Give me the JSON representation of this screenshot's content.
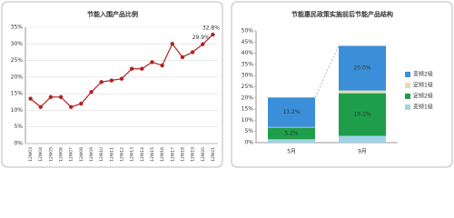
{
  "chart_data": [
    {
      "type": "line",
      "title": "节能入围产品比例",
      "categories": [
        "12W03",
        "12W04",
        "12W05",
        "12W06",
        "12W07",
        "12W08",
        "12W09",
        "12W10",
        "12W11",
        "12W12",
        "12W13",
        "12W14",
        "12W15",
        "12W16",
        "12W17",
        "12W18",
        "12W19",
        "12W20",
        "12W21"
      ],
      "values": [
        13.5,
        11,
        14,
        14,
        11,
        12,
        15.5,
        18.5,
        19,
        19.5,
        22.5,
        22.5,
        24.5,
        23.5,
        30,
        26,
        27.5,
        29.9,
        32.8
      ],
      "value_labels": [
        null,
        null,
        null,
        null,
        null,
        null,
        null,
        null,
        null,
        null,
        null,
        null,
        null,
        null,
        null,
        null,
        null,
        "29.9%",
        "32.8%"
      ],
      "color": "#b22222",
      "ylim": [
        0,
        35
      ],
      "yticks": [
        {
          "value": 0,
          "label": "0%"
        },
        {
          "value": 5,
          "label": "5%"
        },
        {
          "value": 10,
          "label": "10%"
        },
        {
          "value": 15,
          "label": "15%"
        },
        {
          "value": 20,
          "label": "20%"
        },
        {
          "value": 25,
          "label": "25%"
        },
        {
          "value": 30,
          "label": "30%"
        },
        {
          "value": 35,
          "label": "35%"
        }
      ],
      "grid": true
    },
    {
      "type": "stacked_bar",
      "title": "节能惠民政策实施前后节能产品结构",
      "categories": [
        "5月",
        "9月"
      ],
      "series": [
        {
          "name": "变频1级",
          "color": "#9fd3e6",
          "values": [
            1.5,
            3.0
          ],
          "value_labels": [
            null,
            null
          ]
        },
        {
          "name": "定频2级",
          "color": "#1e9e4a",
          "values": [
            5.2,
            19.1
          ],
          "value_labels": [
            "5.2%",
            "19.1%"
          ]
        },
        {
          "name": "定频1级",
          "color": "#e8dcb0",
          "values": [
            0.3,
            1.2
          ],
          "value_labels": [
            null,
            null
          ]
        },
        {
          "name": "变频2级",
          "color": "#3a8fd8",
          "values": [
            13.2,
            20.0
          ],
          "value_labels": [
            "13.2%",
            "20.0%"
          ]
        }
      ],
      "ylim": [
        0,
        50
      ],
      "yticks": [
        {
          "value": 0,
          "label": "0%"
        },
        {
          "value": 5,
          "label": "5%"
        },
        {
          "value": 10,
          "label": "10%"
        },
        {
          "value": 15,
          "label": "15%"
        },
        {
          "value": 20,
          "label": "20%"
        },
        {
          "value": 25,
          "label": "25%"
        },
        {
          "value": 30,
          "label": "30%"
        },
        {
          "value": 35,
          "label": "35%"
        },
        {
          "value": 40,
          "label": "40%"
        },
        {
          "value": 45,
          "label": "45%"
        },
        {
          "value": 50,
          "label": "50%"
        }
      ],
      "grid": false,
      "legend": "right"
    }
  ]
}
